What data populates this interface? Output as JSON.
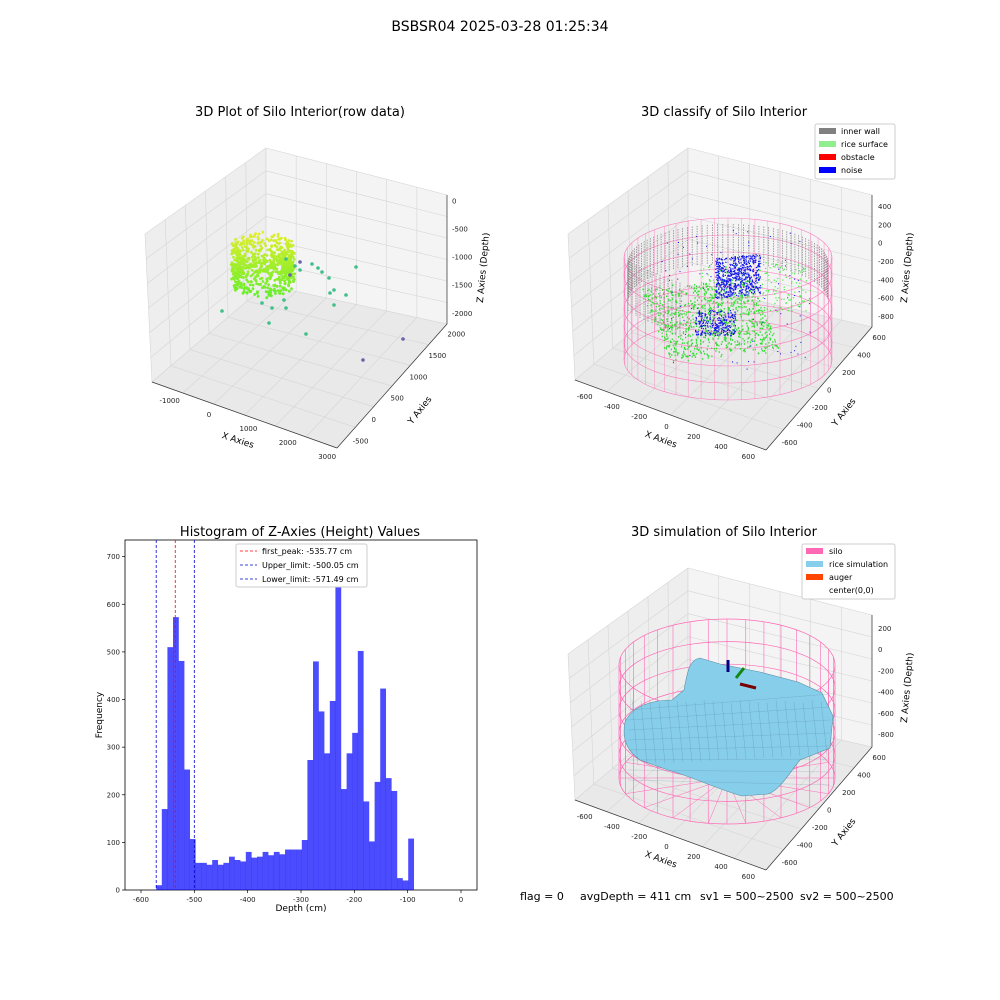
{
  "suptitle": "BSBSR04 2025-03-28 01:25:34",
  "footer": {
    "flag": "flag = 0",
    "avg_depth": "avgDepth = 411 cm",
    "sv1": "sv1 = 500~2500",
    "sv2": "sv2 = 500~2500"
  },
  "colors": {
    "hist_bar": "#0000ff",
    "first_peak": "#ff0000",
    "limit": "#0000cc",
    "inner_wall": "#808080",
    "rice_surface": "#90ee90",
    "obstacle": "#ff0000",
    "noise": "#0000ff",
    "silo": "#ff69b4",
    "rice_simulation": "#87ceeb",
    "auger": "#ff4500",
    "center": "#ffffff"
  },
  "chart_data": [
    {
      "type": "scatter",
      "title": "3D Plot of Silo Interior(row data)",
      "xlabel": "X Axies",
      "ylabel": "Y Axies",
      "zlabel": "Z Axies (Depth)",
      "x_ticks": [
        "-1000",
        "0",
        "1000",
        "2000",
        "3000"
      ],
      "y_ticks": [
        "-500",
        "0",
        "500",
        "1000",
        "1500",
        "2000"
      ],
      "z_ticks": [
        "-2000",
        "-1500",
        "-1000",
        "-500",
        "0"
      ],
      "xlim": [
        -1500,
        3200
      ],
      "ylim": [
        -700,
        2200
      ],
      "zlim": [
        -2200,
        100
      ]
    },
    {
      "type": "scatter",
      "title": "3D classify of Silo Interior",
      "xlabel": "X Axies",
      "ylabel": "Y Axies",
      "zlabel": "Z Axies (Depth)",
      "x_ticks": [
        "-600",
        "-400",
        "-200",
        "0",
        "200",
        "400",
        "600"
      ],
      "y_ticks": [
        "-600",
        "-400",
        "-200",
        "0",
        "200",
        "400",
        "600"
      ],
      "z_ticks": [
        "-800",
        "-600",
        "-400",
        "-200",
        "0",
        "200",
        "400"
      ],
      "legend": [
        "inner wall",
        "rice surface",
        "obstacle",
        "noise"
      ],
      "legend_position": "top-right"
    },
    {
      "type": "bar",
      "title": "Histogram of Z-Axies (Height) Values",
      "xlabel": "Depth (cm)",
      "ylabel": "Frequency",
      "xlim": [
        -630,
        30
      ],
      "ylim": [
        0,
        735
      ],
      "x_ticks": [
        -600,
        -500,
        -400,
        -300,
        -200,
        -100,
        0
      ],
      "y_ticks": [
        0,
        100,
        200,
        300,
        400,
        500,
        600,
        700
      ],
      "bin_width": 10.5,
      "bins_start": -571.49,
      "values": [
        10,
        170,
        510,
        573,
        481,
        253,
        107,
        57,
        57,
        53,
        63,
        53,
        57,
        70,
        63,
        60,
        80,
        68,
        70,
        80,
        73,
        80,
        75,
        85,
        85,
        85,
        105,
        273,
        480,
        375,
        287,
        397,
        700,
        212,
        287,
        330,
        502,
        186,
        102,
        227,
        423,
        235,
        208,
        25,
        20,
        108
      ],
      "vlines": [
        {
          "label": "first_peak: -535.77 cm",
          "x": -535.77,
          "color": "#ff0000"
        },
        {
          "label": "Upper_limit: -500.05 cm",
          "x": -500.05,
          "color": "#0000cc"
        },
        {
          "label": "Lower_limit: -571.49 cm",
          "x": -571.49,
          "color": "#0000cc"
        }
      ],
      "legend_position": "top-center"
    },
    {
      "type": "surface",
      "title": "3D simulation of Silo Interior",
      "xlabel": "X Axies",
      "ylabel": "Y Axies",
      "zlabel": "Z Axies (Depth)",
      "x_ticks": [
        "-600",
        "-400",
        "-200",
        "0",
        "200",
        "400",
        "600"
      ],
      "y_ticks": [
        "-600",
        "-400",
        "-200",
        "0",
        "200",
        "400",
        "600"
      ],
      "z_ticks": [
        "-800",
        "-600",
        "-400",
        "-200",
        "0",
        "200"
      ],
      "legend": [
        "silo",
        "rice simulation",
        "auger",
        "center(0,0)"
      ],
      "legend_position": "top-right"
    }
  ]
}
